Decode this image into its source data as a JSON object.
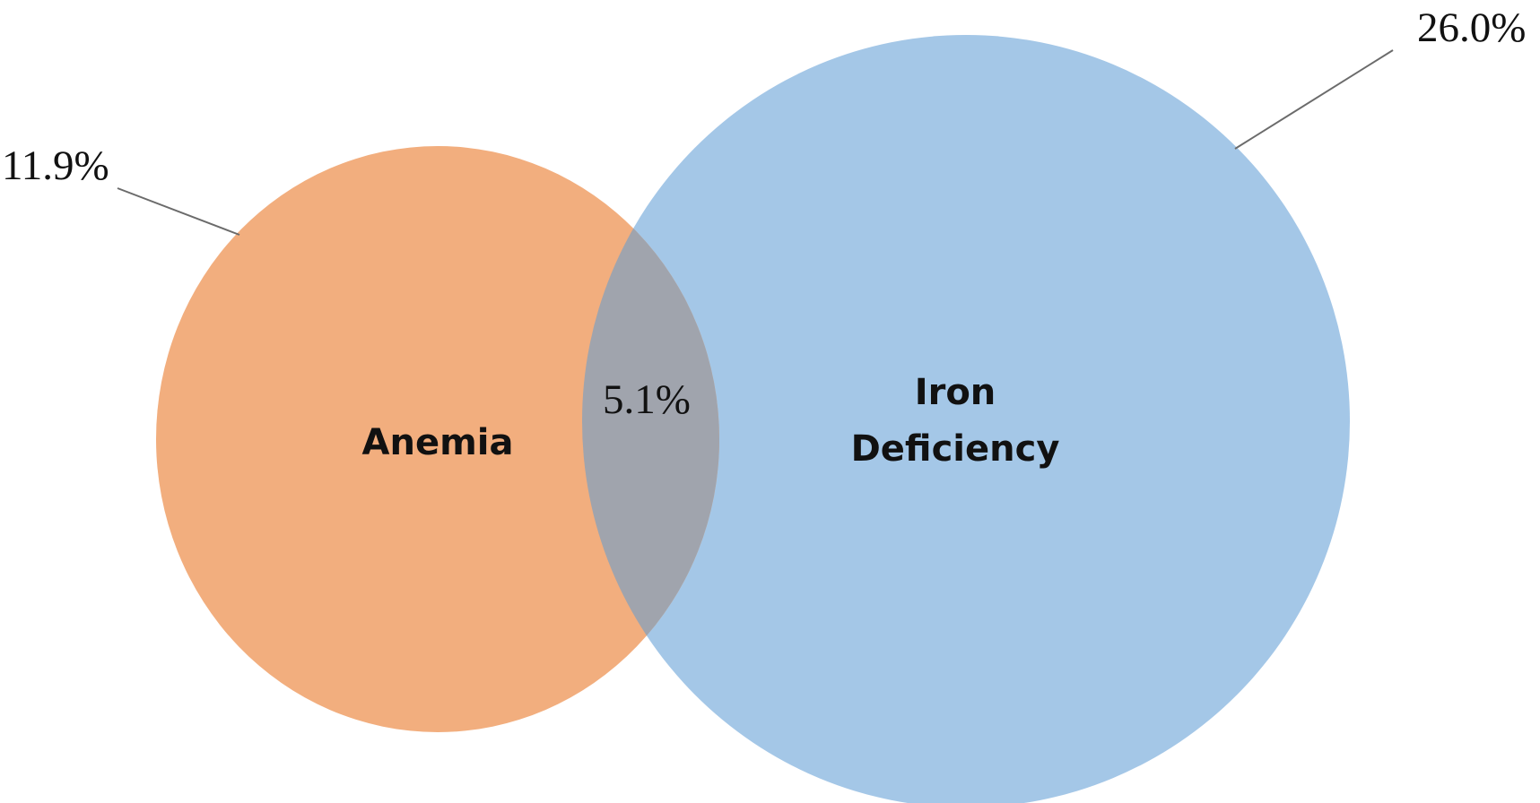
{
  "venn": {
    "sets": [
      {
        "id": "anemia",
        "label": "Anemia",
        "percent": "11.9%",
        "value": 11.9,
        "color": "#F2AE7E"
      },
      {
        "id": "iron_deficiency",
        "label_line1": "Iron",
        "label_line2": "Deficiency",
        "percent": "26.0%",
        "value": 26.0,
        "color": "#A4C7E7"
      }
    ],
    "intersection": {
      "percent": "5.1%",
      "value": 5.1,
      "color": "#A0A4AD"
    },
    "leader_line_color": "#6b6b6b"
  }
}
